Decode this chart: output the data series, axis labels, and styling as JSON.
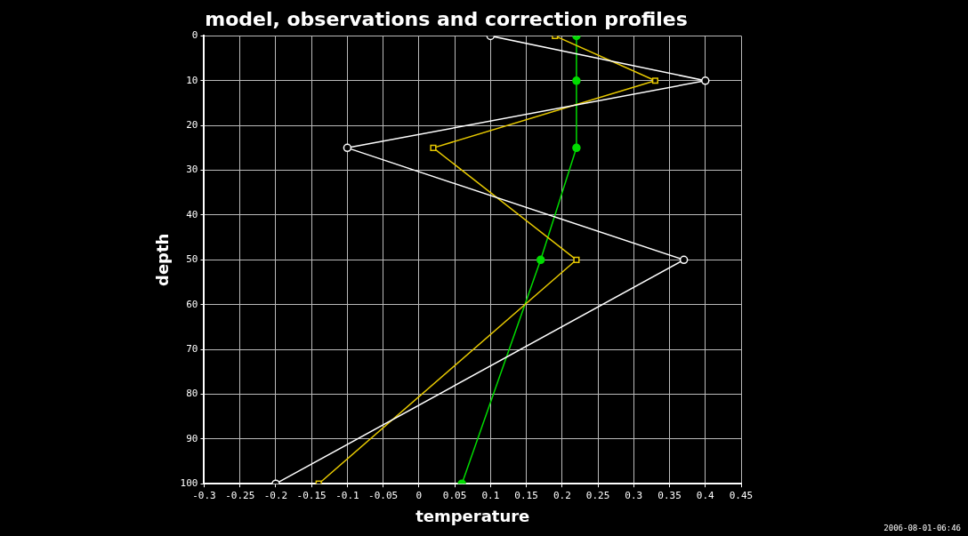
{
  "chart_data": {
    "type": "line",
    "title": "model, observations and correction profiles",
    "xlabel": "temperature",
    "ylabel": "depth",
    "series": [
      {
        "color": "#ffffff",
        "marker": "circle",
        "x": [
          0.1,
          0.4,
          -0.1,
          0.37,
          -0.2
        ],
        "values": [
          0,
          10,
          25,
          50,
          100
        ]
      },
      {
        "color": "#e6c800",
        "marker": "square",
        "x": [
          0.19,
          0.33,
          0.02,
          0.22,
          -0.14
        ],
        "values": [
          0,
          10,
          25,
          50,
          100
        ]
      },
      {
        "color": "#00dc00",
        "marker": "circle_filled",
        "x": [
          0.22,
          0.22,
          0.22,
          0.17,
          0.06
        ],
        "values": [
          0,
          10,
          25,
          50,
          100
        ]
      }
    ],
    "xlim": [
      -0.3,
      0.45
    ],
    "xticks": [
      -0.3,
      -0.25,
      -0.2,
      -0.15,
      -0.1,
      -0.05,
      0,
      0.05,
      0.1,
      0.15,
      0.2,
      0.25,
      0.3,
      0.35,
      0.4,
      0.45
    ],
    "ylim": [
      100,
      0
    ],
    "yticks": [
      0,
      10,
      20,
      30,
      40,
      50,
      60,
      70,
      80,
      90,
      100
    ],
    "grid": true,
    "legend": false,
    "line_style": "solid",
    "annotations": [
      "2006-08-01-06:46"
    ]
  }
}
